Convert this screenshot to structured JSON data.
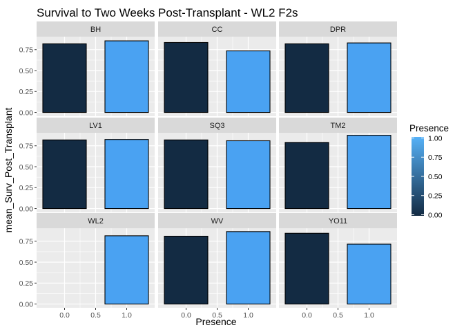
{
  "chart_data": {
    "type": "bar",
    "title": "Survival to Two Weeks Post-Transplant  - WL2 F2s",
    "xlabel": "Presence",
    "ylabel": "mean_Surv_Post_Transplant",
    "x_ticks": [
      "0.0",
      "0.5",
      "1.0"
    ],
    "y_ticks": [
      "0.00",
      "0.25",
      "0.50",
      "0.75"
    ],
    "xlim": [
      -0.45,
      1.45
    ],
    "ylim": [
      -0.045,
      0.905
    ],
    "grid": true,
    "legend": {
      "title": "Presence",
      "position": "right",
      "ticks": [
        "1.00",
        "0.75",
        "0.50",
        "0.25",
        "0.00"
      ],
      "low_color": "#132B43",
      "high_color": "#56B1F7"
    },
    "colors": {
      "presence_0": "#132B43",
      "presence_1": "#4AA2F2"
    },
    "facets": [
      {
        "label": "BH",
        "values": [
          {
            "x": 0,
            "y": 0.82
          },
          {
            "x": 1,
            "y": 0.855
          }
        ]
      },
      {
        "label": "CC",
        "values": [
          {
            "x": 0,
            "y": 0.835
          },
          {
            "x": 1,
            "y": 0.735
          }
        ]
      },
      {
        "label": "DPR",
        "values": [
          {
            "x": 0,
            "y": 0.82
          },
          {
            "x": 1,
            "y": 0.83
          }
        ]
      },
      {
        "label": "LV1",
        "values": [
          {
            "x": 0,
            "y": 0.82
          },
          {
            "x": 1,
            "y": 0.825
          }
        ]
      },
      {
        "label": "SQ3",
        "values": [
          {
            "x": 0,
            "y": 0.82
          },
          {
            "x": 1,
            "y": 0.81
          }
        ]
      },
      {
        "label": "TM2",
        "values": [
          {
            "x": 0,
            "y": 0.79
          },
          {
            "x": 1,
            "y": 0.875
          }
        ]
      },
      {
        "label": "WL2",
        "values": [
          {
            "x": 1,
            "y": 0.815
          }
        ]
      },
      {
        "label": "WV",
        "values": [
          {
            "x": 0,
            "y": 0.81
          },
          {
            "x": 1,
            "y": 0.865
          }
        ]
      },
      {
        "label": "YO11",
        "values": [
          {
            "x": 0,
            "y": 0.845
          },
          {
            "x": 1,
            "y": 0.715
          }
        ]
      }
    ]
  }
}
